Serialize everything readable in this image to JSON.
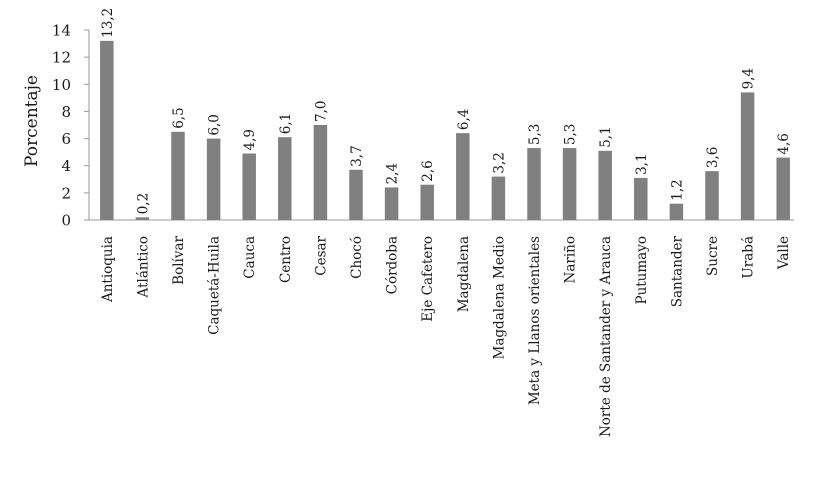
{
  "chart_data": {
    "type": "bar",
    "ylabel": "Porcentaje",
    "xlabel": "",
    "title": "",
    "ylim": [
      0,
      14
    ],
    "y_ticks": [
      "0",
      "2",
      "4",
      "6",
      "8",
      "10",
      "12",
      "14"
    ],
    "y_tick_values": [
      0,
      2,
      4,
      6,
      8,
      10,
      12,
      14
    ],
    "grid": false,
    "legend": "none",
    "bar_color": "#808080",
    "categories": [
      "Antioquia",
      "Atlántico",
      "Bolívar",
      "Caquetá-Huila",
      "Cauca",
      "Centro",
      "Cesar",
      "Chocó",
      "Córdoba",
      "Eje Cafetero",
      "Magdalena",
      "Magdalena Medio",
      "Meta y Llanos orientales",
      "Nariño",
      "Norte de Santander y Arauca",
      "Putumayo",
      "Santander",
      "Sucre",
      "Urabá",
      "Valle"
    ],
    "values": [
      13.2,
      0.2,
      6.5,
      6.0,
      4.9,
      6.1,
      7.0,
      3.7,
      2.4,
      2.6,
      6.4,
      3.2,
      5.3,
      5.3,
      5.1,
      3.1,
      1.2,
      3.6,
      9.4,
      4.6
    ],
    "value_labels": [
      "13,2",
      "0,2",
      "6,5",
      "6,0",
      "4,9",
      "6,1",
      "7,0",
      "3,7",
      "2,4",
      "2,6",
      "6,4",
      "3,2",
      "5,3",
      "5,3",
      "5,1",
      "3,1",
      "1,2",
      "3,6",
      "9,4",
      "4,6"
    ]
  }
}
